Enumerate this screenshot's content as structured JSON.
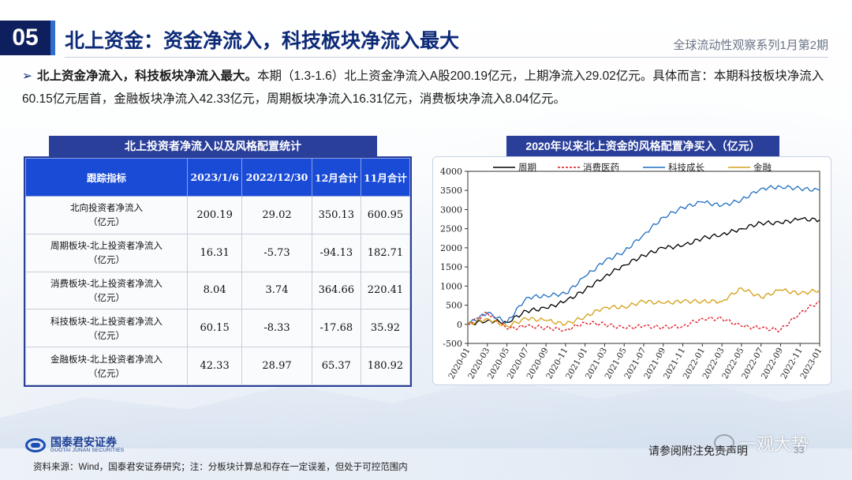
{
  "header": {
    "number": "05",
    "title": "北上资金：资金净流入，科技板块净流入最大",
    "series_name": "全球流动性观察系列1月第2期"
  },
  "summary": {
    "bold": "北上资金净流入，科技板块净流入最大。",
    "text": "本期（1.3-1.6）北上资金净流入A股200.19亿元，上期净流入29.02亿元。具体而言：本期科技板块净流入60.15亿元居首，金融板块净流入42.33亿元，周期板块净流入16.31亿元，消费板块净流入8.04亿元。"
  },
  "table": {
    "title": "北上投资者净流入以及风格配置统计",
    "headers": [
      "跟踪指标",
      "2023/1/6",
      "2022/12/30",
      "12月合计",
      "11月合计"
    ],
    "rows": [
      {
        "label": "北向投资者净流入",
        "unit": "（亿元）",
        "values": [
          "200.19",
          "29.02",
          "350.13",
          "600.95"
        ]
      },
      {
        "label": "周期板块-北上投资者净流入",
        "unit": "（亿元）",
        "values": [
          "16.31",
          "-5.73",
          "-94.13",
          "182.71"
        ]
      },
      {
        "label": "消费板块-北上投资者净流入",
        "unit": "（亿元）",
        "values": [
          "8.04",
          "3.74",
          "364.66",
          "220.41"
        ]
      },
      {
        "label": "科技板块-北上投资者净流入",
        "unit": "（亿元）",
        "values": [
          "60.15",
          "-8.33",
          "-17.68",
          "35.92"
        ]
      },
      {
        "label": "金融板块-北上投资者净流入",
        "unit": "（亿元）",
        "values": [
          "42.33",
          "28.97",
          "65.37",
          "180.92"
        ]
      }
    ]
  },
  "chart_title": "2020年以来北上资金的风格配置净买入（亿元）",
  "chart_data": {
    "type": "line",
    "title": "2020年以来北上资金的风格配置净买入（亿元）",
    "x": [
      "2020-01",
      "2020-03",
      "2020-05",
      "2020-07",
      "2020-09",
      "2020-11",
      "2021-01",
      "2021-03",
      "2021-05",
      "2021-07",
      "2021-09",
      "2021-11",
      "2022-01",
      "2022-03",
      "2022-05",
      "2022-07",
      "2022-09",
      "2022-11",
      "2023-01"
    ],
    "ylim": [
      -500,
      4000
    ],
    "yticks": [
      "-500",
      "0",
      "500",
      "1000",
      "1500",
      "2000",
      "2500",
      "3000",
      "3500",
      "4000"
    ],
    "legend_position": "top",
    "grid": false,
    "series": [
      {
        "name": "周期",
        "color": "#000000",
        "dash": "solid",
        "values": [
          0,
          100,
          50,
          350,
          420,
          600,
          900,
          1250,
          1550,
          1800,
          2000,
          2050,
          2250,
          2350,
          2500,
          2650,
          2650,
          2750,
          2730
        ]
      },
      {
        "name": "消费医药",
        "color": "#e0141e",
        "dash": "dashed",
        "values": [
          0,
          300,
          -120,
          -50,
          -90,
          -150,
          50,
          0,
          -100,
          -50,
          -80,
          -50,
          150,
          150,
          -50,
          -100,
          -150,
          300,
          600
        ]
      },
      {
        "name": "科技成长",
        "color": "#1f6fc2",
        "dash": "solid",
        "values": [
          0,
          300,
          50,
          700,
          750,
          800,
          1250,
          1650,
          1900,
          2350,
          2800,
          3050,
          3200,
          3100,
          3250,
          3550,
          3600,
          3550,
          3500
        ]
      },
      {
        "name": "金融",
        "color": "#d4a017",
        "dash": "solid",
        "values": [
          0,
          150,
          -50,
          150,
          100,
          0,
          200,
          450,
          450,
          600,
          550,
          600,
          600,
          600,
          950,
          700,
          900,
          800,
          900
        ]
      }
    ]
  },
  "footer": {
    "logo_cn": "国泰君安证券",
    "logo_en": "GUOTAI JUNAN SECURITIES",
    "source": "资料来源：Wind，国泰君安证券研究；注：分板块计算总和存在一定误差，但处于可控范围内",
    "disclaimer": "请参阅附注免责声明",
    "watermark": "一观大势",
    "page": "33"
  }
}
